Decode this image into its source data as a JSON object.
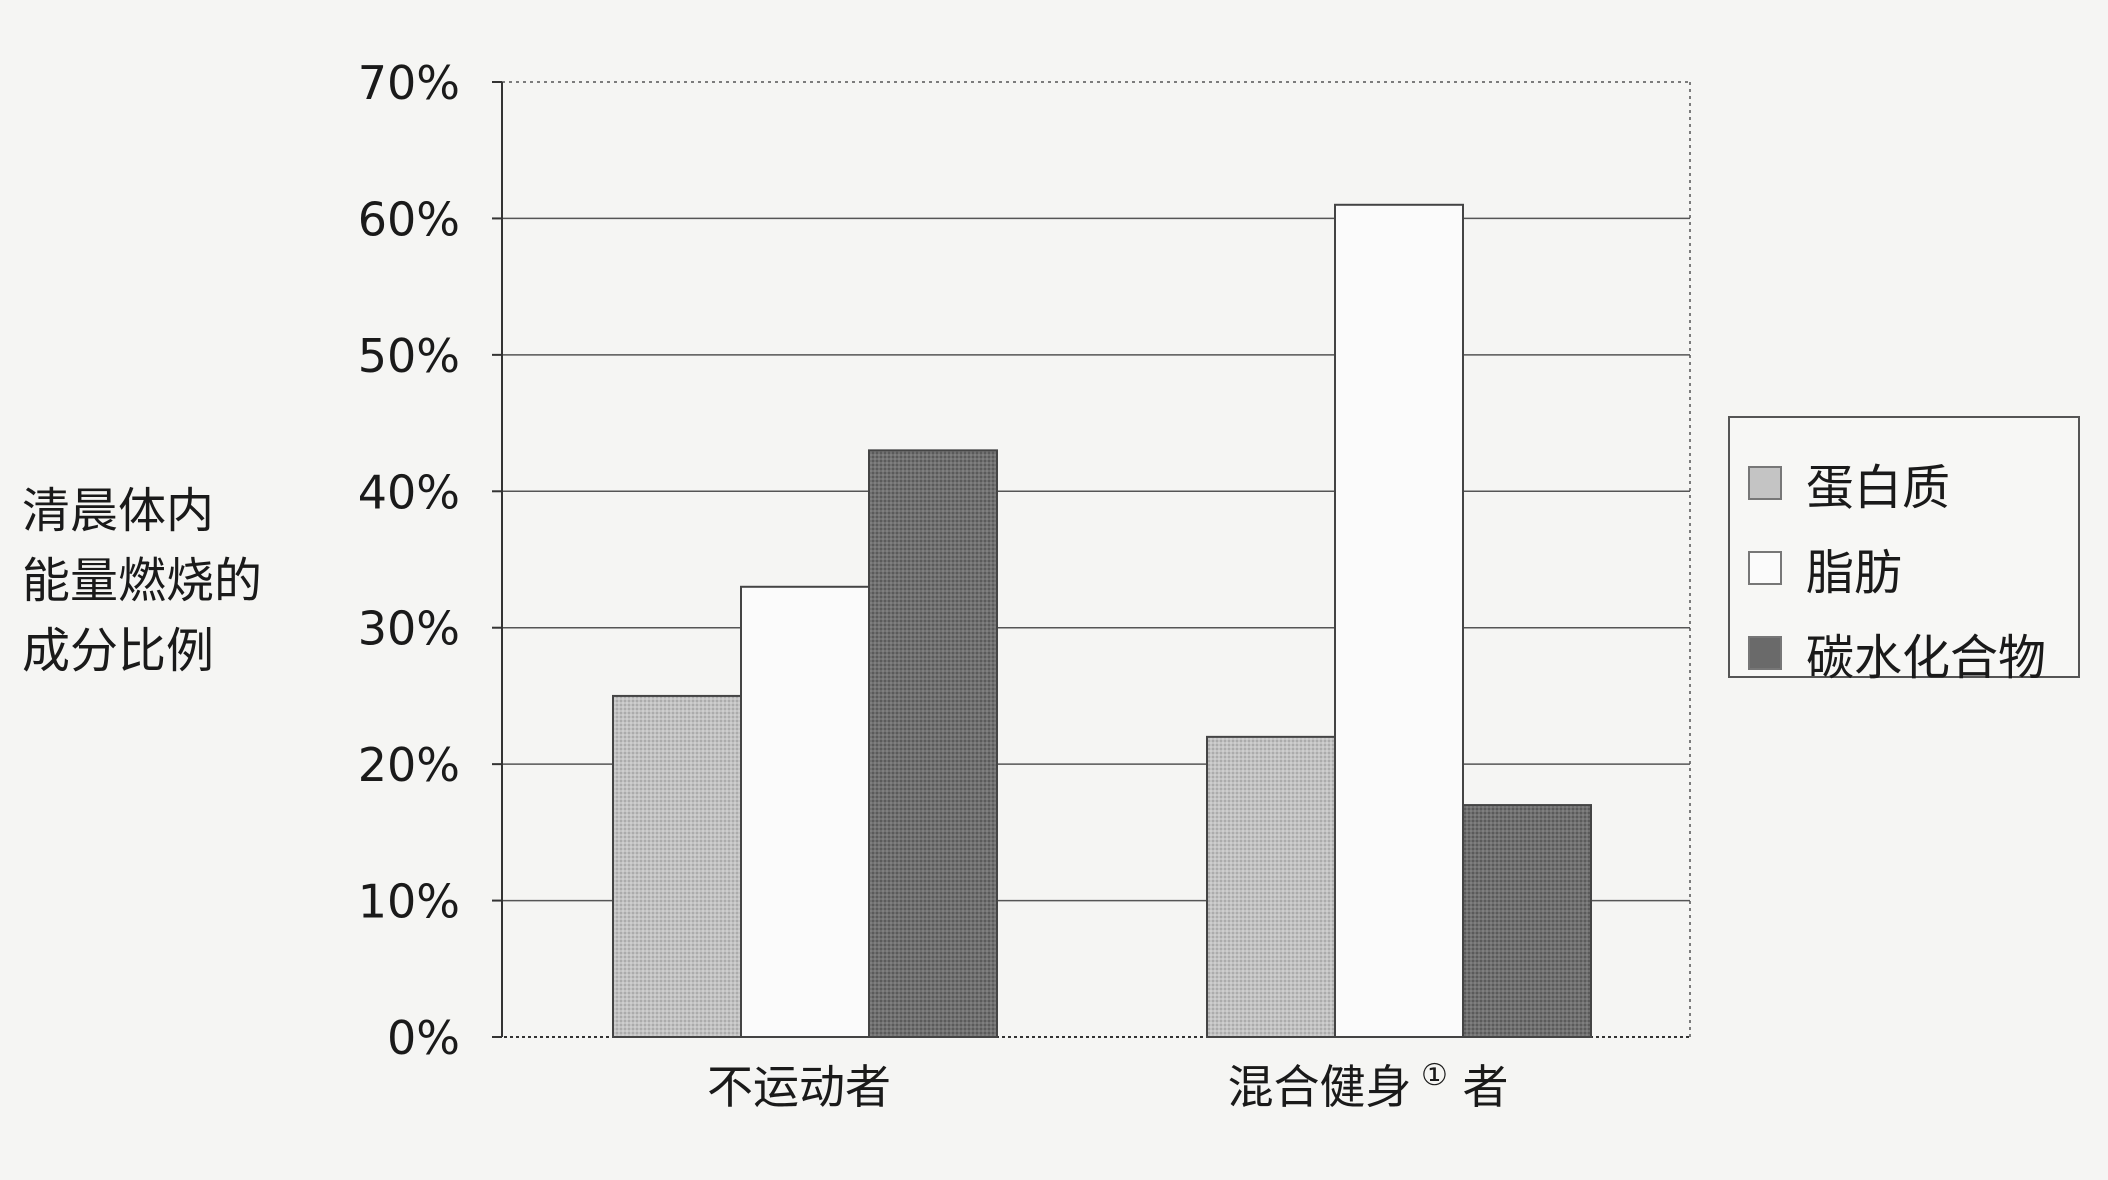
{
  "chart_data": {
    "type": "bar",
    "title": "",
    "ylabel_lines": [
      "清晨体内",
      "能量燃烧的",
      "成分比例"
    ],
    "xlabel": "",
    "categories": [
      "不运动者",
      "混合健身"
    ],
    "category_suffix": "者",
    "footnote_mark": "①",
    "ylim": [
      0,
      70
    ],
    "yticks": [
      "0%",
      "10%",
      "20%",
      "30%",
      "40%",
      "50%",
      "60%",
      "70%"
    ],
    "grid": true,
    "legend_position": "right",
    "series": [
      {
        "name": "蛋白质",
        "values": [
          25,
          22
        ],
        "color": "#b9b9b9"
      },
      {
        "name": "脂肪",
        "values": [
          33,
          61
        ],
        "color": "#fbfbfb"
      },
      {
        "name": "碳水化合物",
        "values": [
          43,
          17
        ],
        "color": "#6a6a6a"
      }
    ]
  }
}
